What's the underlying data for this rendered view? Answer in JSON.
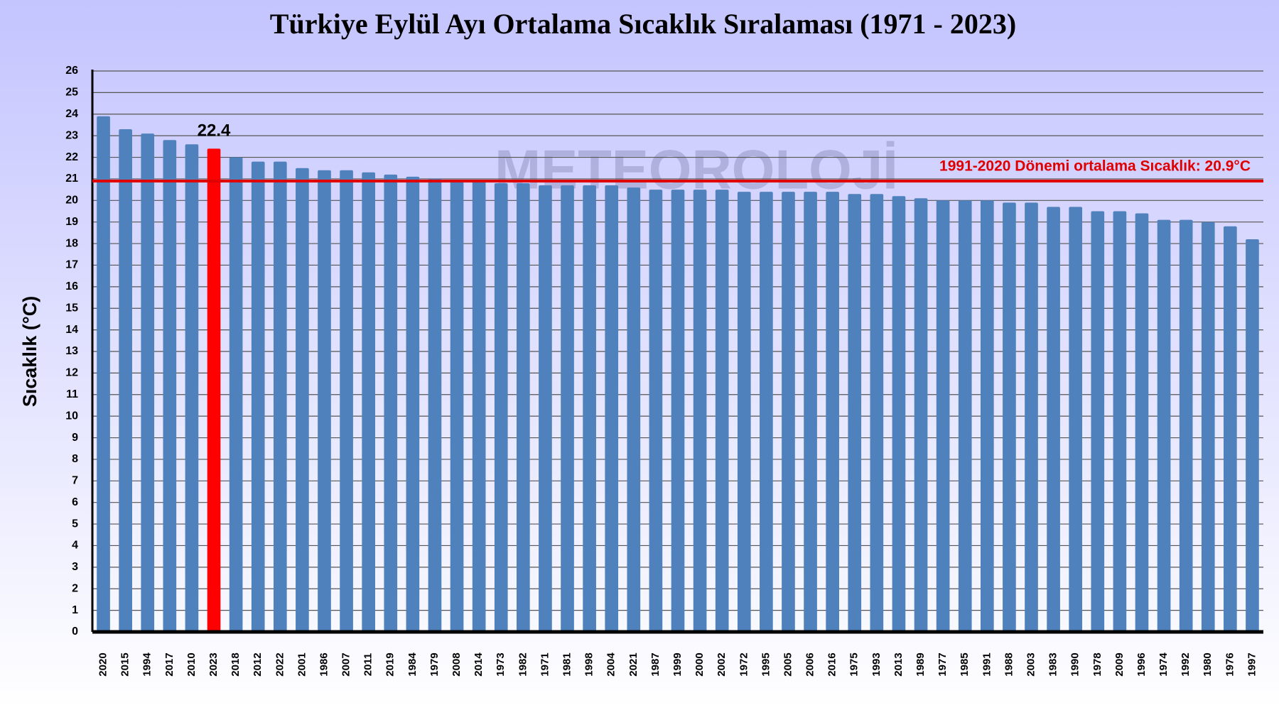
{
  "chart_data": {
    "type": "bar",
    "title": "Türkiye Eylül Ayı Ortalama Sıcaklık Sıralaması (1971 - 2023)",
    "y_label": "Sıcaklık (°C)",
    "watermark": "METEOROLOJİ",
    "categories": [
      "2020",
      "2015",
      "1994",
      "2017",
      "2010",
      "2023",
      "2018",
      "2012",
      "2022",
      "2001",
      "1986",
      "2007",
      "2011",
      "2019",
      "1984",
      "1979",
      "2008",
      "2014",
      "1973",
      "1982",
      "1971",
      "1981",
      "1998",
      "2004",
      "2021",
      "1987",
      "1999",
      "2000",
      "2002",
      "1972",
      "1995",
      "2005",
      "2006",
      "2016",
      "1975",
      "1993",
      "2013",
      "1989",
      "1977",
      "1985",
      "1991",
      "1988",
      "2003",
      "1983",
      "1990",
      "1978",
      "2009",
      "1996",
      "1974",
      "1992",
      "1980",
      "1976",
      "1997"
    ],
    "values": [
      23.9,
      23.3,
      23.1,
      22.8,
      22.6,
      22.4,
      22.0,
      21.8,
      21.8,
      21.5,
      21.4,
      21.4,
      21.3,
      21.2,
      21.1,
      21.0,
      20.9,
      20.9,
      20.8,
      20.8,
      20.7,
      20.7,
      20.7,
      20.7,
      20.6,
      20.5,
      20.5,
      20.5,
      20.5,
      20.4,
      20.4,
      20.4,
      20.4,
      20.4,
      20.3,
      20.3,
      20.2,
      20.1,
      20.0,
      20.0,
      20.0,
      19.9,
      19.9,
      19.7,
      19.7,
      19.5,
      19.5,
      19.4,
      19.1,
      19.1,
      19.0,
      18.8,
      18.2
    ],
    "color": "#4f81bd",
    "highlight_index": 5,
    "highlight_color": "#ff0000",
    "reference_line": {
      "value": 20.9,
      "label": "1991-2020 Dönemi ortalama Sıcaklık: 20.9°C",
      "color": "#e00000"
    },
    "ylim": [
      0,
      26
    ],
    "yticks": [
      0,
      1,
      2,
      3,
      4,
      5,
      6,
      7,
      8,
      9,
      10,
      11,
      12,
      13,
      14,
      15,
      16,
      17,
      18,
      19,
      20,
      21,
      22,
      23,
      24,
      25,
      26
    ],
    "grid": true
  }
}
